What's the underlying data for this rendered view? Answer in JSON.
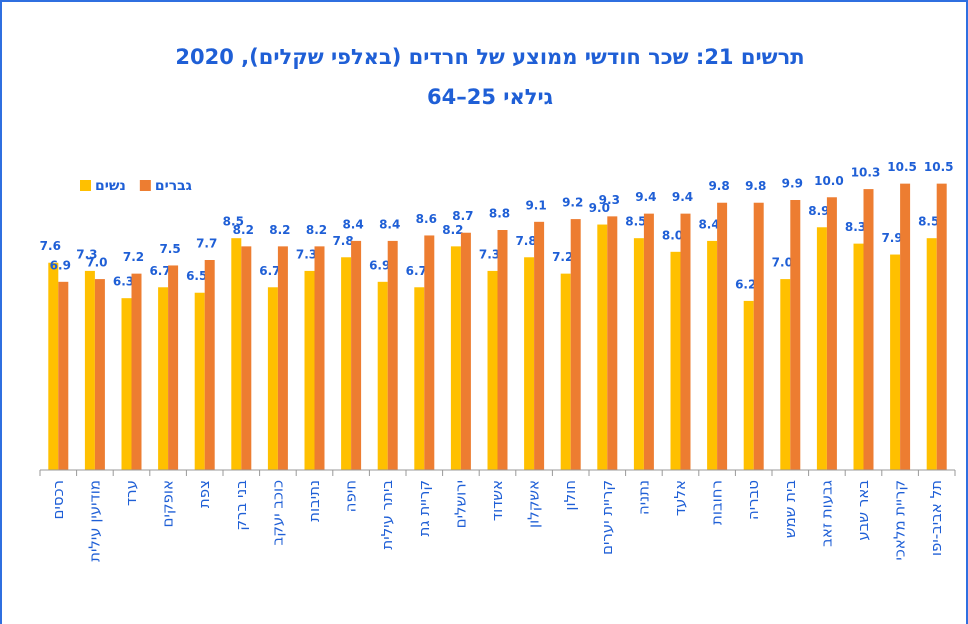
{
  "chart_data": {
    "type": "bar",
    "title": "תרשים 21: שכר חודשי ממוצע של חרדים (באלפי שקלים), 2020",
    "subtitle": "גילאי 25–64",
    "categories": [
      "רכסים",
      "מודיעין עילית",
      "ערד",
      "אופקים",
      "צפת",
      "בני ברק",
      "כוכב יעקב",
      "נתיבות",
      "חיפה",
      "ביתר עילית",
      "קריית גת",
      "ירושלים",
      "אשדוד",
      "אשקלון",
      "חולון",
      "קריית יערים",
      "נתניה",
      "אלעד",
      "רחובות",
      "טבריה",
      "בית שמש",
      "גבעות זאב",
      "באר שבע",
      "קריית מלאכי",
      "תל אביב-יפו"
    ],
    "series": [
      {
        "name": "נשים",
        "color": "#ffc000",
        "values": [
          7.6,
          7.3,
          6.3,
          6.7,
          6.5,
          8.5,
          6.7,
          7.3,
          7.8,
          6.9,
          6.7,
          8.2,
          7.3,
          7.8,
          7.2,
          9,
          8.5,
          8,
          8.4,
          6.2,
          7,
          8.9,
          8.3,
          7.9,
          8.5
        ],
        "value_labels": [
          "7.6",
          "7.3",
          "6.3",
          "6.7",
          "6.5",
          "8.5",
          "6.7",
          "7.3",
          "7.8",
          "6.9",
          "6.7",
          "8.2",
          "7.3",
          "7.8",
          "7.2",
          "9.0",
          "8.5",
          "8.0",
          "8.4",
          "6.2",
          "7.0",
          "8.9",
          "8.3",
          "7.9",
          "8.5"
        ]
      },
      {
        "name": "גברים",
        "color": "#ed7d31",
        "values": [
          6.9,
          7,
          7.2,
          7.5,
          7.7,
          8.2,
          8.2,
          8.2,
          8.4,
          8.4,
          8.6,
          8.7,
          8.8,
          9.1,
          9.2,
          9.3,
          9.4,
          9.4,
          9.8,
          9.8,
          9.9,
          10,
          10.3,
          10.5,
          10.5
        ],
        "value_labels": [
          "6.9",
          "7.0",
          "7.2",
          "7.5",
          "7.7",
          "8.2",
          "8.2",
          "8.2",
          "8.4",
          "8.4",
          "8.6",
          "8.7",
          "8.8",
          "9.1",
          "9.2",
          "9.3",
          "9.4",
          "9.4",
          "9.8",
          "9.8",
          "9.9",
          "10.0",
          "10.3",
          "10.5",
          "10.5"
        ]
      }
    ],
    "ylim": [
      0,
      11
    ],
    "legend": "top-left"
  }
}
